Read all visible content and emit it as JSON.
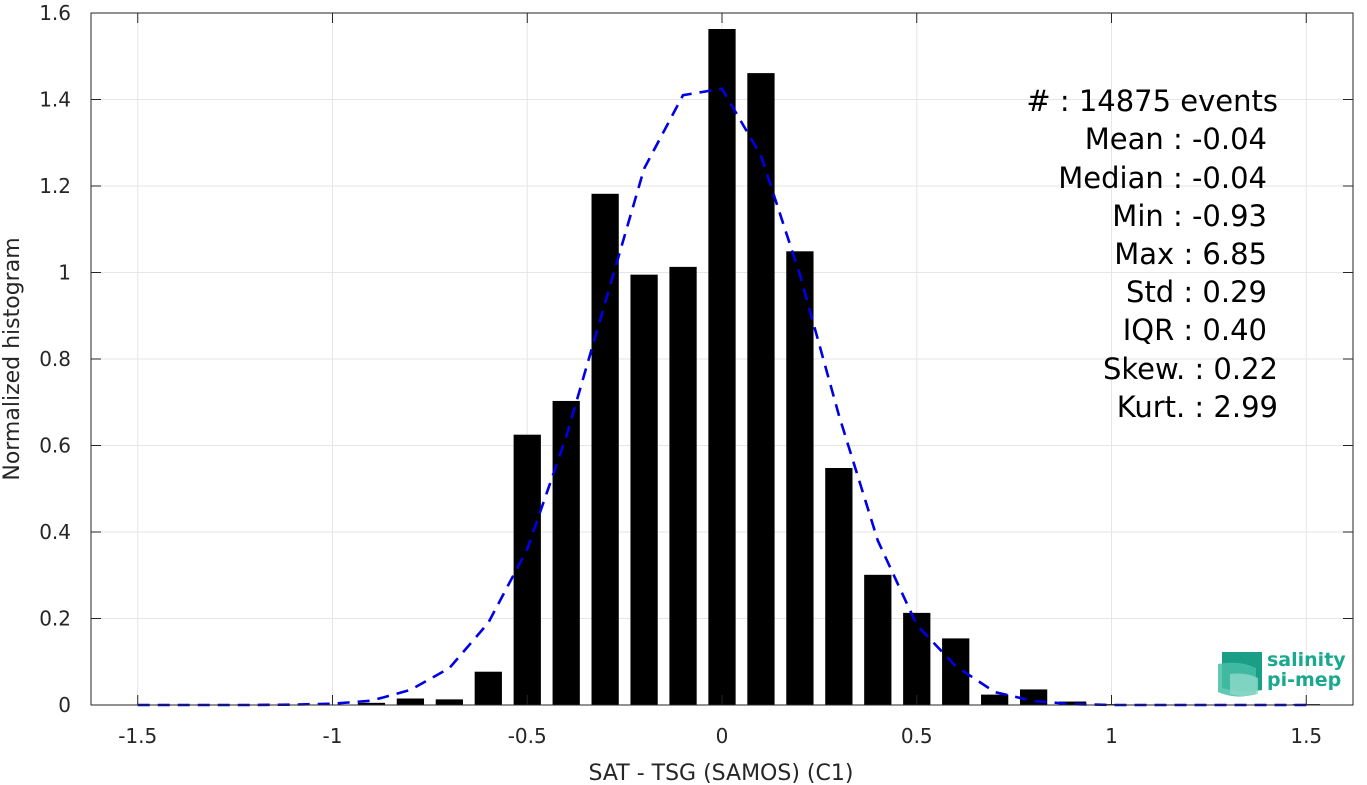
{
  "chart_data": {
    "type": "bar",
    "xlabel": "SAT - TSG (SAMOS) (C1)",
    "ylabel": "Normalized histogram",
    "xlim": [
      -1.62,
      1.62
    ],
    "ylim": [
      0,
      1.6
    ],
    "xticks": [
      -1.5,
      -1,
      -0.5,
      0,
      0.5,
      1,
      1.5
    ],
    "xtick_labels": [
      "-1.5",
      "-1",
      "-0.5",
      "0",
      "0.5",
      "1",
      "1.5"
    ],
    "yticks": [
      0,
      0.2,
      0.4,
      0.6,
      0.8,
      1,
      1.2,
      1.4,
      1.6
    ],
    "ytick_labels": [
      "0",
      "0.2",
      "0.4",
      "0.6",
      "0.8",
      "1",
      "1.2",
      "1.4",
      "1.6"
    ],
    "grid": true,
    "bar_color": "#000000",
    "bar_width": 0.07,
    "bars": {
      "x": [
        -1.5,
        -1.4,
        -1.3,
        -1.2,
        -1.1,
        -1.0,
        -0.9,
        -0.8,
        -0.7,
        -0.6,
        -0.5,
        -0.4,
        -0.3,
        -0.2,
        -0.1,
        0.0,
        0.1,
        0.2,
        0.3,
        0.4,
        0.5,
        0.6,
        0.7,
        0.8,
        0.9,
        1.0,
        1.1,
        1.2,
        1.3,
        1.4,
        1.5
      ],
      "values": [
        0,
        0,
        0,
        0,
        0,
        0,
        0.005,
        0.015,
        0.013,
        0.077,
        0.625,
        0.703,
        1.182,
        0.995,
        1.013,
        1.563,
        1.461,
        1.049,
        0.548,
        0.301,
        0.213,
        0.154,
        0.024,
        0.036,
        0.008,
        0.002,
        0.001,
        0.001,
        0.001,
        0.001,
        0.002
      ]
    },
    "fit_curve": {
      "style": "dashed",
      "color": "#0000e6",
      "x": [
        -1.5,
        -1.4,
        -1.3,
        -1.2,
        -1.1,
        -1.0,
        -0.9,
        -0.8,
        -0.7,
        -0.6,
        -0.5,
        -0.4,
        -0.3,
        -0.2,
        -0.1,
        0.0,
        0.1,
        0.2,
        0.3,
        0.4,
        0.5,
        0.6,
        0.7,
        0.8,
        0.9,
        1.0,
        1.1,
        1.2,
        1.3,
        1.4,
        1.5
      ],
      "y": [
        0.0,
        0.0,
        0.0,
        0.0,
        0.001,
        0.003,
        0.01,
        0.035,
        0.085,
        0.19,
        0.36,
        0.62,
        0.93,
        1.24,
        1.41,
        1.425,
        1.27,
        0.995,
        0.67,
        0.38,
        0.185,
        0.09,
        0.03,
        0.009,
        0.002,
        0.0,
        0.0,
        0.0,
        0.0,
        0.0,
        0.0
      ]
    }
  },
  "stats": [
    {
      "label": "#  : 14875 events"
    },
    {
      "label": "Mean : -0.04"
    },
    {
      "label": "Median : -0.04"
    },
    {
      "label": "Min : -0.93"
    },
    {
      "label": "Max : 6.85"
    },
    {
      "label": "Std : 0.29"
    },
    {
      "label": "IQR : 0.40"
    },
    {
      "label": "Skew. : 0.22"
    },
    {
      "label": "Kurt. : 2.99"
    }
  ],
  "logo": {
    "line1": "salinity",
    "line2": "pi-mep",
    "color": "#1aa88f"
  }
}
